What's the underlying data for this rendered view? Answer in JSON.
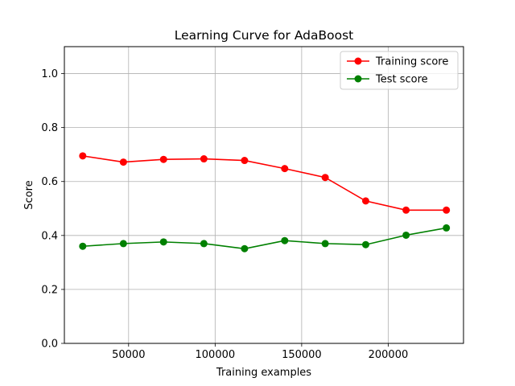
{
  "chart_data": {
    "type": "line",
    "title": "Learning Curve for AdaBoost",
    "xlabel": "Training examples",
    "ylabel": "Score",
    "xlim": [
      12900,
      243500
    ],
    "ylim": [
      0.0,
      1.1
    ],
    "xticks": [
      50000,
      100000,
      150000,
      200000
    ],
    "yticks": [
      0.0,
      0.2,
      0.4,
      0.6,
      0.8,
      1.0
    ],
    "grid": true,
    "legend_position": "top-right",
    "x": [
      23500,
      47000,
      70200,
      93500,
      117000,
      140200,
      163600,
      187000,
      210300,
      233600
    ],
    "series": [
      {
        "name": "Training score",
        "color": "#ff0000",
        "values": [
          0.695,
          0.672,
          0.682,
          0.684,
          0.678,
          0.648,
          0.615,
          0.528,
          0.494,
          0.494
        ]
      },
      {
        "name": "Test score",
        "color": "#008000",
        "values": [
          0.36,
          0.37,
          0.376,
          0.37,
          0.351,
          0.381,
          0.37,
          0.366,
          0.401,
          0.428
        ]
      }
    ]
  }
}
